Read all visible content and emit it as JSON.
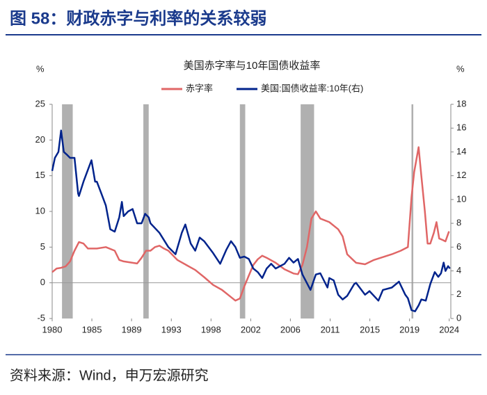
{
  "header": {
    "title": "图 58：财政赤字与利率的关系较弱"
  },
  "chart_data": {
    "type": "line",
    "title": "美国赤字率与10年国债收益率",
    "y_unit": "%",
    "y2_unit": "%",
    "xlim": [
      1980,
      2024.6
    ],
    "xticks": [
      {
        "value": 1980,
        "label": "1980"
      },
      {
        "value": 1984.44,
        "label": "1985"
      },
      {
        "value": 1988.88,
        "label": "1989"
      },
      {
        "value": 1993.33,
        "label": "1993"
      },
      {
        "value": 1997.77,
        "label": "1998"
      },
      {
        "value": 2002.21,
        "label": "2002"
      },
      {
        "value": 2006.65,
        "label": "2006"
      },
      {
        "value": 2011.1,
        "label": "2011"
      },
      {
        "value": 2015.54,
        "label": "2015"
      },
      {
        "value": 2019.98,
        "label": "2019"
      },
      {
        "value": 2024.42,
        "label": "2024"
      }
    ],
    "ylim": [
      -5,
      25
    ],
    "yticks": [
      -5,
      0,
      5,
      10,
      15,
      20,
      25
    ],
    "y2lim": [
      0,
      18
    ],
    "y2ticks": [
      0,
      2,
      4,
      6,
      8,
      10,
      12,
      14,
      16,
      18
    ],
    "shaded_periods": [
      [
        1981.1,
        1982.3
      ],
      [
        1990.2,
        1990.8
      ],
      [
        2001.0,
        2001.6
      ],
      [
        2007.8,
        2009.3
      ],
      [
        2020.2,
        2020.4
      ]
    ],
    "shade_color": "#b0b0b0",
    "legend": "top",
    "series": [
      {
        "name": "赤字率",
        "color": "#e06666",
        "axis": "y",
        "x": [
          1980,
          1980.5,
          1981,
          1981.5,
          1982,
          1982.5,
          1983,
          1983.5,
          1984,
          1985,
          1986,
          1987,
          1987.5,
          1988,
          1989,
          1989.5,
          1990,
          1990.5,
          1991,
          1991.5,
          1992,
          1992.5,
          1993,
          1994,
          1995,
          1996,
          1997,
          1998,
          1999,
          2000,
          2000.5,
          2001,
          2001.5,
          2002,
          2002.5,
          2003,
          2003.5,
          2004,
          2005,
          2006,
          2007,
          2007.5,
          2008,
          2008.5,
          2009,
          2009.5,
          2010,
          2011,
          2012,
          2012.5,
          2013,
          2014,
          2015,
          2016,
          2017,
          2018,
          2019,
          2019.8,
          2020.2,
          2020.5,
          2021,
          2021.3,
          2021.7,
          2022,
          2022.3,
          2022.7,
          2023,
          2023.3,
          2023.7,
          2024,
          2024.4
        ],
        "values": [
          1.5,
          2.0,
          2.1,
          2.3,
          3.0,
          4.5,
          5.7,
          5.5,
          4.8,
          4.8,
          5.0,
          4.5,
          3.2,
          3.0,
          2.8,
          2.7,
          3.5,
          4.5,
          4.5,
          5.0,
          5.2,
          4.8,
          4.5,
          3.2,
          2.5,
          1.8,
          0.8,
          -0.3,
          -1.0,
          -2.0,
          -2.5,
          -2.2,
          -0.5,
          1.0,
          2.5,
          3.3,
          3.8,
          3.5,
          2.8,
          1.9,
          1.3,
          1.2,
          2.5,
          5.0,
          9.0,
          10.0,
          9.0,
          8.5,
          7.5,
          6.5,
          4.0,
          2.8,
          2.6,
          3.2,
          3.6,
          4.0,
          4.5,
          5.0,
          12,
          15.5,
          19.0,
          15,
          10,
          5.5,
          5.5,
          7,
          8.5,
          6.2,
          6,
          5.8,
          7.2
        ]
      },
      {
        "name": "美国:国债收益率:10年(右)",
        "color": "#00238c",
        "axis": "y2",
        "x": [
          1980,
          1980.3,
          1980.7,
          1981,
          1981.3,
          1981.6,
          1982,
          1982.5,
          1982.9,
          1983,
          1983.5,
          1984,
          1984.4,
          1984.8,
          1985,
          1985.5,
          1986,
          1986.5,
          1987,
          1987.5,
          1987.8,
          1988,
          1988.5,
          1989,
          1989.5,
          1990,
          1990.4,
          1990.8,
          1991,
          1992,
          1993,
          1993.8,
          1994.5,
          1994.9,
          1995.5,
          1996,
          1996.5,
          1997,
          1998,
          1998.8,
          1999.5,
          2000,
          2000.5,
          2001,
          2001.5,
          2002,
          2002.5,
          2003,
          2003.5,
          2004,
          2004.5,
          2005,
          2006,
          2006.5,
          2007,
          2007.5,
          2008,
          2008.9,
          2009.5,
          2010,
          2010.8,
          2011,
          2011.5,
          2012,
          2012.5,
          2013,
          2013.8,
          2014,
          2015,
          2015.5,
          2016.5,
          2017,
          2018,
          2018.8,
          2019.5,
          2019.8,
          2020.2,
          2020.6,
          2021,
          2021.3,
          2021.8,
          2022.3,
          2022.8,
          2023.2,
          2023.5,
          2023.8,
          2024,
          2024.3,
          2024.5
        ],
        "values": [
          12.4,
          13.5,
          14,
          15.8,
          14,
          13.8,
          13.5,
          13.5,
          10.5,
          10.3,
          11.5,
          12.5,
          13.3,
          11.5,
          11.5,
          10.5,
          9.5,
          7.5,
          7.3,
          8.5,
          9.8,
          8.6,
          9.0,
          9.2,
          8.0,
          8.0,
          8.8,
          8.5,
          8.0,
          7.2,
          6.0,
          5.4,
          7.2,
          7.9,
          6.3,
          5.7,
          6.8,
          6.5,
          5.5,
          4.6,
          5.8,
          6.5,
          6.0,
          5.1,
          5.2,
          5.0,
          4.2,
          3.9,
          3.4,
          4.2,
          4.6,
          4.2,
          4.6,
          5.1,
          4.7,
          5.0,
          3.7,
          2.4,
          3.7,
          3.8,
          2.6,
          3.4,
          3.2,
          2.0,
          1.6,
          1.9,
          2.9,
          3.0,
          2.0,
          2.3,
          1.5,
          2.4,
          2.6,
          3.1,
          2.0,
          1.7,
          0.7,
          0.6,
          1.1,
          1.6,
          1.5,
          2.9,
          3.9,
          3.5,
          3.8,
          4.7,
          4.0,
          4.4,
          4.2
        ]
      }
    ]
  },
  "footer": {
    "source": "资料来源：Wind，申万宏源研究"
  }
}
